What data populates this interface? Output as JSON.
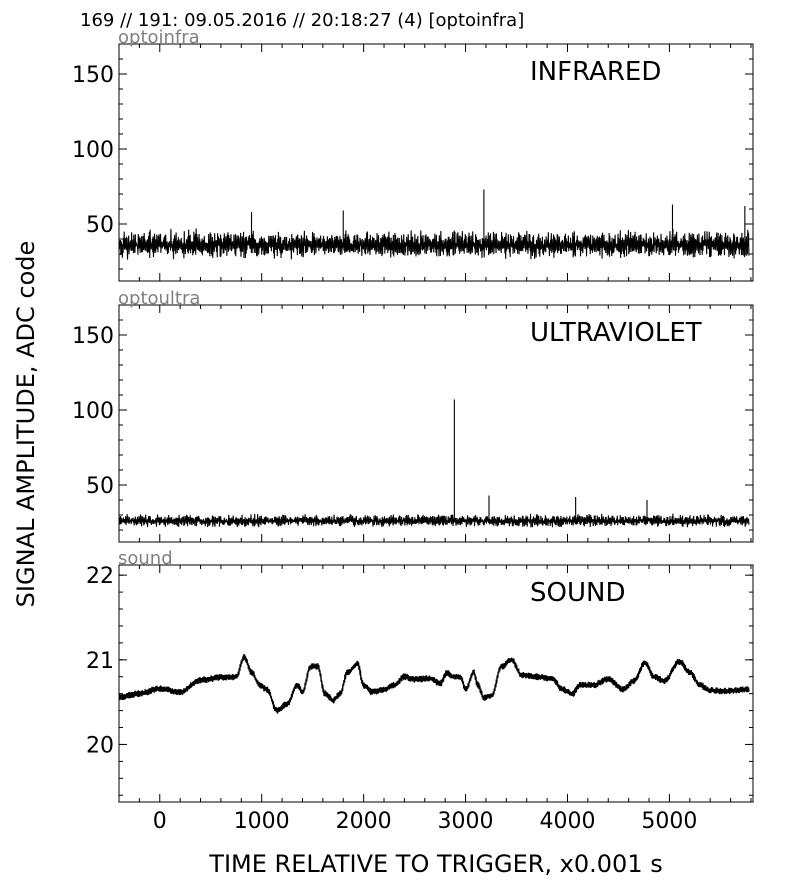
{
  "header": "169 // 191:   09.05.2016 // 20:18:27 (4)  [optoinfra]",
  "ylabel": "SIGNAL AMPLITUDE,  ADC code",
  "xlabel": "TIME RELATIVE TO TRIGGER,   x0.001 s",
  "colors": {
    "trace": "#000000",
    "channel_label": "#808080",
    "axes": "#000000",
    "background": "#ffffff"
  },
  "chart_data": [
    {
      "type": "line",
      "channel": "optoinfra",
      "title": "INFRARED",
      "xlim": [
        -400,
        5820
      ],
      "ylim": [
        12,
        170
      ],
      "x_ticks": [
        0,
        1000,
        2000,
        3000,
        4000,
        5000
      ],
      "y_ticks": [
        50,
        100,
        150
      ],
      "y_tick_labels": [
        "50",
        "100",
        "150"
      ],
      "x_tick_labels": [
        "",
        "",
        "",
        "",
        "",
        ""
      ],
      "grid": false,
      "x_range": [
        -400,
        5780
      ],
      "noise": {
        "center": 36,
        "amplitude": 11,
        "min": 23,
        "max": 60
      },
      "spikes": [
        {
          "x": 3180,
          "y": 73
        },
        {
          "x": 5030,
          "y": 63
        },
        {
          "x": 5740,
          "y": 62
        },
        {
          "x": 1800,
          "y": 59
        },
        {
          "x": 900,
          "y": 58
        }
      ]
    },
    {
      "type": "line",
      "channel": "optoultra",
      "title": "ULTRAVIOLET",
      "xlim": [
        -400,
        5820
      ],
      "ylim": [
        12,
        170
      ],
      "x_ticks": [
        0,
        1000,
        2000,
        3000,
        4000,
        5000
      ],
      "y_ticks": [
        50,
        100,
        150
      ],
      "y_tick_labels": [
        "50",
        "100",
        "150"
      ],
      "x_tick_labels": [
        "",
        "",
        "",
        "",
        "",
        ""
      ],
      "grid": false,
      "x_range": [
        -400,
        5780
      ],
      "noise": {
        "center": 26,
        "amplitude": 5,
        "min": 20,
        "max": 40
      },
      "spikes": [
        {
          "x": 2890,
          "y": 107
        },
        {
          "x": 3230,
          "y": 43
        },
        {
          "x": 4080,
          "y": 42
        },
        {
          "x": 4780,
          "y": 40
        }
      ]
    },
    {
      "type": "line",
      "channel": "sound",
      "title": "SOUND",
      "xlim": [
        -400,
        5820
      ],
      "ylim": [
        19.32,
        22.12
      ],
      "x_ticks": [
        0,
        1000,
        2000,
        3000,
        4000,
        5000
      ],
      "y_ticks": [
        20,
        21,
        22
      ],
      "y_tick_labels": [
        "20",
        "21",
        "22"
      ],
      "x_tick_labels": [
        "0",
        "1000",
        "2000",
        "3000",
        "4000",
        "5000"
      ],
      "grid": false,
      "x_range": [
        -400,
        5780
      ],
      "band_width": 0.04,
      "x": [
        -400,
        -200,
        0,
        200,
        400,
        600,
        750,
        830,
        900,
        980,
        1050,
        1150,
        1250,
        1350,
        1400,
        1480,
        1550,
        1620,
        1700,
        1770,
        1840,
        1940,
        2000,
        2080,
        2200,
        2300,
        2400,
        2500,
        2650,
        2750,
        2820,
        2880,
        2950,
        3000,
        3080,
        3120,
        3180,
        3260,
        3350,
        3450,
        3550,
        3700,
        3850,
        3950,
        4050,
        4120,
        4250,
        4400,
        4550,
        4650,
        4760,
        4850,
        4950,
        5100,
        5200,
        5300,
        5400,
        5550,
        5780
      ],
      "y": [
        20.56,
        20.6,
        20.66,
        20.62,
        20.76,
        20.79,
        20.8,
        21.03,
        20.85,
        20.7,
        20.65,
        20.4,
        20.48,
        20.7,
        20.62,
        20.92,
        20.92,
        20.6,
        20.52,
        20.6,
        20.85,
        20.95,
        20.7,
        20.62,
        20.65,
        20.7,
        20.8,
        20.77,
        20.78,
        20.72,
        20.85,
        20.8,
        20.8,
        20.65,
        20.85,
        20.7,
        20.55,
        20.58,
        20.92,
        21.0,
        20.82,
        20.8,
        20.78,
        20.65,
        20.6,
        20.7,
        20.7,
        20.77,
        20.65,
        20.75,
        20.96,
        20.8,
        20.75,
        20.98,
        20.85,
        20.7,
        20.64,
        20.63,
        20.65
      ]
    }
  ]
}
